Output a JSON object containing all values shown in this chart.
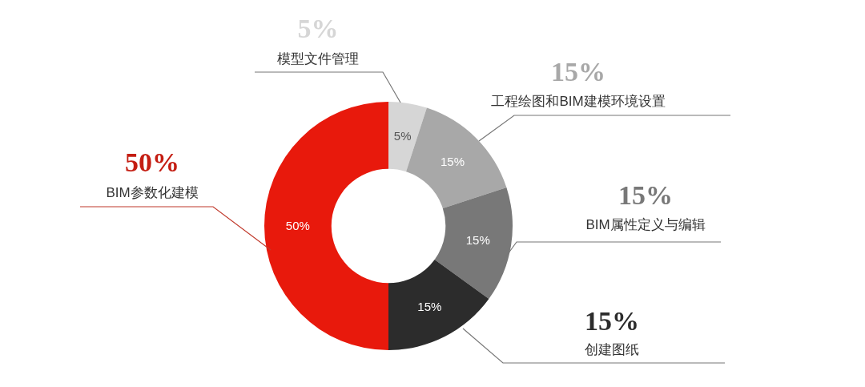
{
  "chart_data": {
    "type": "donut",
    "categories": [
      "模型文件管理",
      "工程绘图和BIM建模环境设置",
      "BIM属性定义与编辑",
      "创建图纸",
      "BIM参数化建模"
    ],
    "values": [
      5,
      15,
      15,
      15,
      50
    ],
    "colors": [
      "#d6d6d6",
      "#a8a8a8",
      "#787878",
      "#2c2c2c",
      "#e8190c"
    ],
    "value_labels": [
      "5%",
      "15%",
      "15%",
      "15%",
      "50%"
    ]
  }
}
